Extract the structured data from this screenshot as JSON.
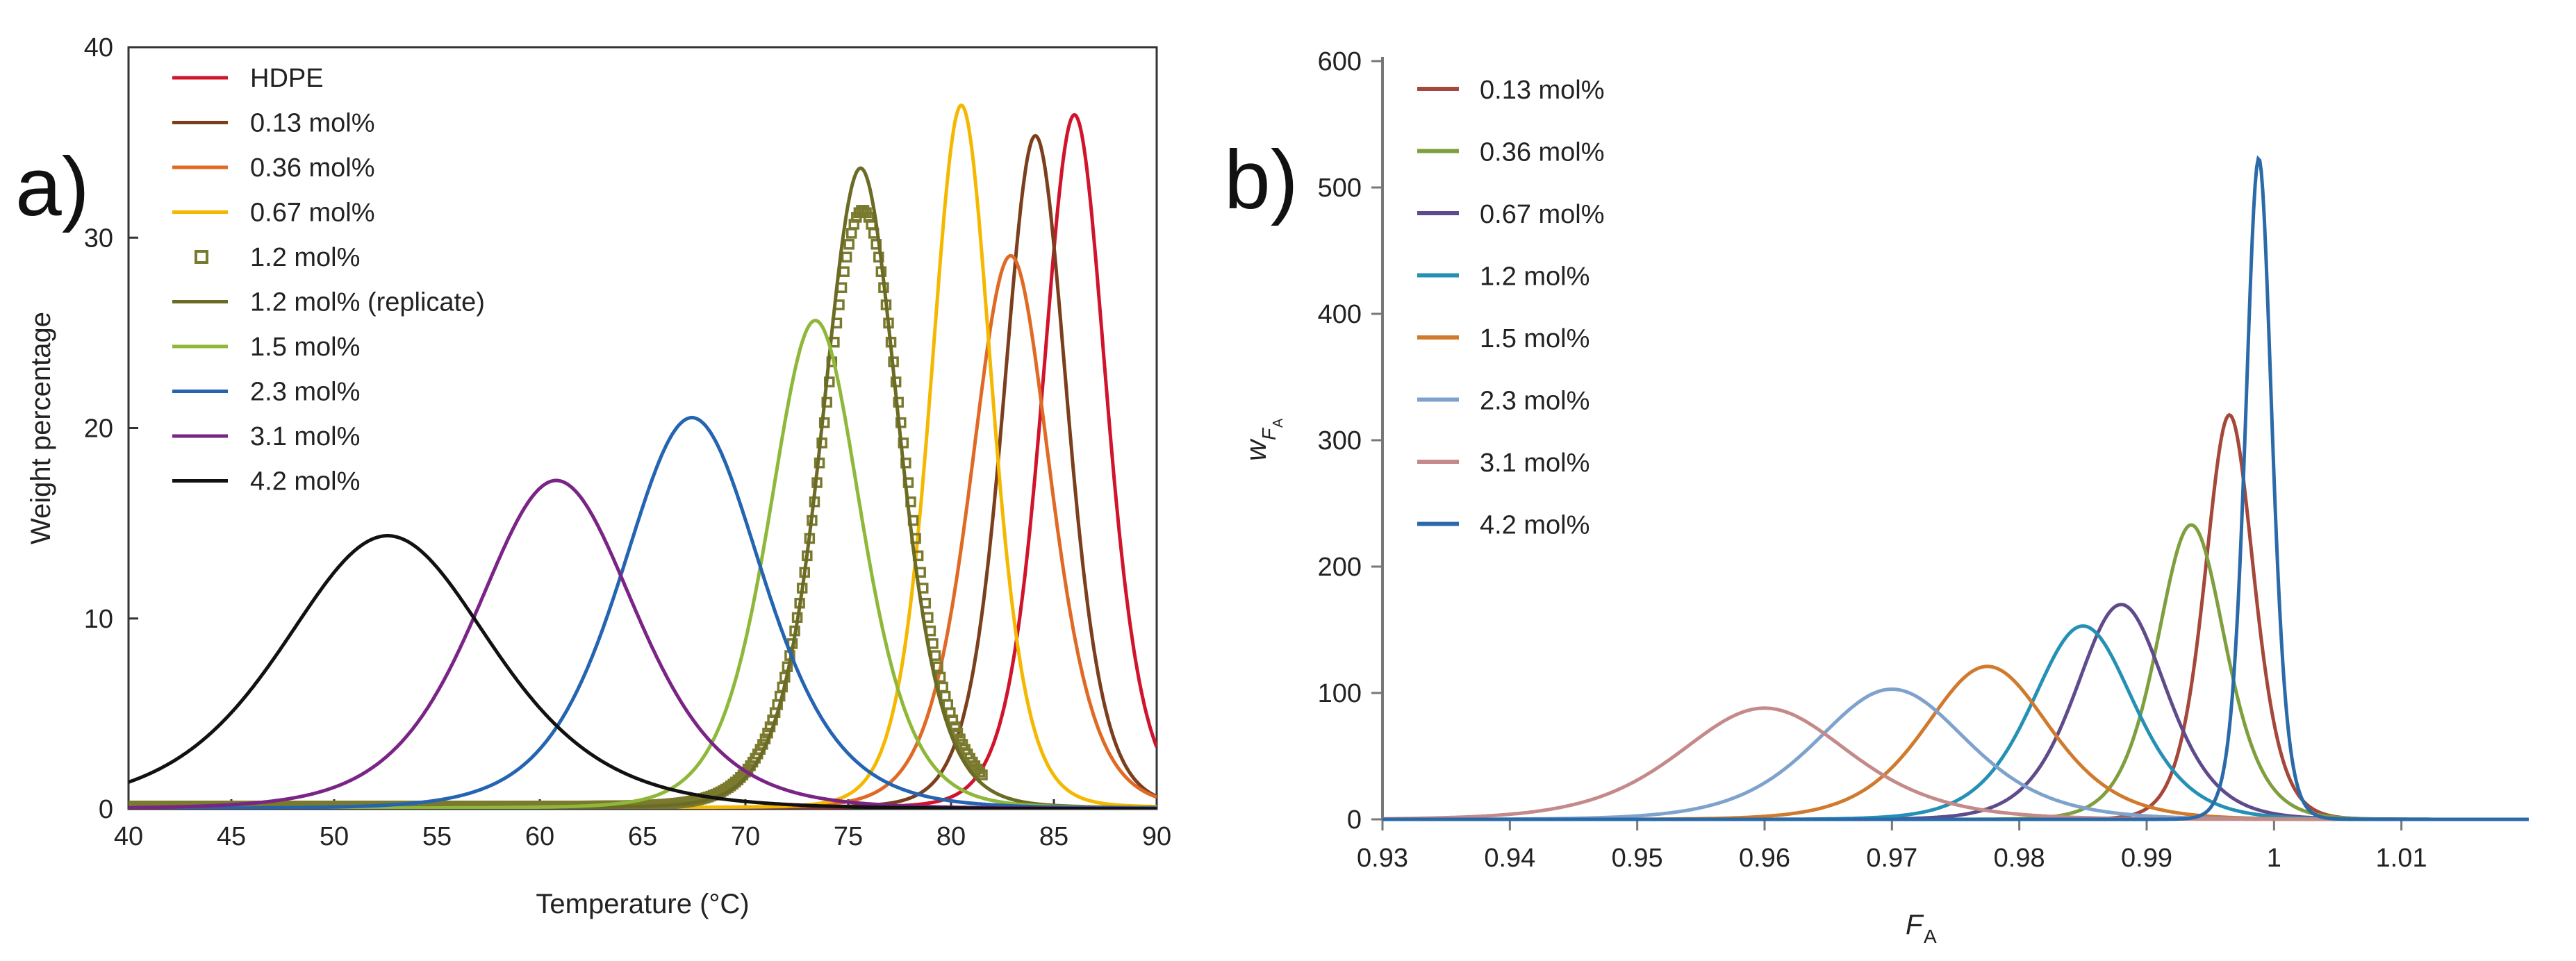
{
  "chart_data": [
    {
      "type": "line",
      "panel_label": "a)",
      "xlabel": "Temperature (°C)",
      "ylabel": "Weight percentage",
      "xlim": [
        40,
        90
      ],
      "ylim": [
        0,
        40
      ],
      "xticks": [
        40,
        45,
        50,
        55,
        60,
        65,
        70,
        75,
        80,
        85,
        90
      ],
      "yticks": [
        0,
        10,
        20,
        30,
        40
      ],
      "legend_position": "top-left",
      "series": [
        {
          "name": "HDPE",
          "color": "#d0142c",
          "style": "line",
          "peak_x": 86.0,
          "peak_y": 36.2,
          "width": 1.05
        },
        {
          "name": "0.13 mol%",
          "color": "#7b3f1d",
          "style": "line",
          "peak_x": 84.1,
          "peak_y": 35.1,
          "width": 1.05
        },
        {
          "name": "0.36 mol%",
          "color": "#e06a25",
          "style": "line",
          "peak_x": 82.9,
          "peak_y": 28.8,
          "width": 1.3
        },
        {
          "name": "0.67 mol%",
          "color": "#f5b800",
          "style": "line",
          "peak_x": 80.5,
          "peak_y": 36.7,
          "width": 1.0
        },
        {
          "name": "1.2 mol%",
          "color": "#7a7a2e",
          "style": "markers",
          "peak_x": 75.7,
          "peak_y": 31.3,
          "width": 1.35
        },
        {
          "name": "1.2 mol% (replicate)",
          "color": "#6b6b25",
          "style": "line",
          "peak_x": 75.6,
          "peak_y": 33.4,
          "width": 1.25
        },
        {
          "name": "1.5 mol%",
          "color": "#8fb83a",
          "style": "line",
          "peak_x": 73.4,
          "peak_y": 25.4,
          "width": 1.5
        },
        {
          "name": "2.3 mol%",
          "color": "#2464b0",
          "style": "line",
          "peak_x": 67.4,
          "peak_y": 20.3,
          "width": 2.3
        },
        {
          "name": "3.1 mol%",
          "color": "#7a2486",
          "style": "line",
          "peak_x": 60.8,
          "peak_y": 17.0,
          "width": 2.6
        },
        {
          "name": "4.2 mol%",
          "color": "#111111",
          "style": "line",
          "peak_x": 52.6,
          "peak_y": 14.1,
          "width": 3.4
        }
      ]
    },
    {
      "type": "line",
      "panel_label": "b)",
      "xlabel": "F",
      "xlabel_sub": "A",
      "ylabel": "w",
      "ylabel_sub": "F",
      "ylabel_subsub": "A",
      "xlim": [
        0.93,
        1.02
      ],
      "ylim": [
        0,
        600
      ],
      "xticks": [
        0.93,
        0.94,
        0.95,
        0.96,
        0.97,
        0.98,
        0.99,
        1,
        1.01
      ],
      "yticks": [
        0,
        100,
        200,
        300,
        400,
        500,
        600
      ],
      "legend_position": "top-left",
      "series": [
        {
          "name": "0.13 mol%",
          "color": "#a5473a",
          "peak_x": 0.9965,
          "peak_y": 320,
          "width": 0.0013
        },
        {
          "name": "0.36 mol%",
          "color": "#7f9f3f",
          "peak_x": 0.9935,
          "peak_y": 233,
          "width": 0.0018
        },
        {
          "name": "0.67 mol%",
          "color": "#5f4b8b",
          "peak_x": 0.988,
          "peak_y": 170,
          "width": 0.0024
        },
        {
          "name": "1.2 mol%",
          "color": "#2590b5",
          "peak_x": 0.985,
          "peak_y": 153,
          "width": 0.0027
        },
        {
          "name": "1.5 mol%",
          "color": "#d07a2d",
          "peak_x": 0.9775,
          "peak_y": 121,
          "width": 0.0033
        },
        {
          "name": "2.3 mol%",
          "color": "#7fa2cd",
          "peak_x": 0.97,
          "peak_y": 103,
          "width": 0.004
        },
        {
          "name": "3.1 mol%",
          "color": "#c48a8a",
          "peak_x": 0.96,
          "peak_y": 88,
          "width": 0.0045
        },
        {
          "name": "4.2 mol%",
          "color": "#2a6aa8",
          "peak_x": 0.9988,
          "peak_y": 523,
          "width": 0.0007
        }
      ]
    }
  ]
}
